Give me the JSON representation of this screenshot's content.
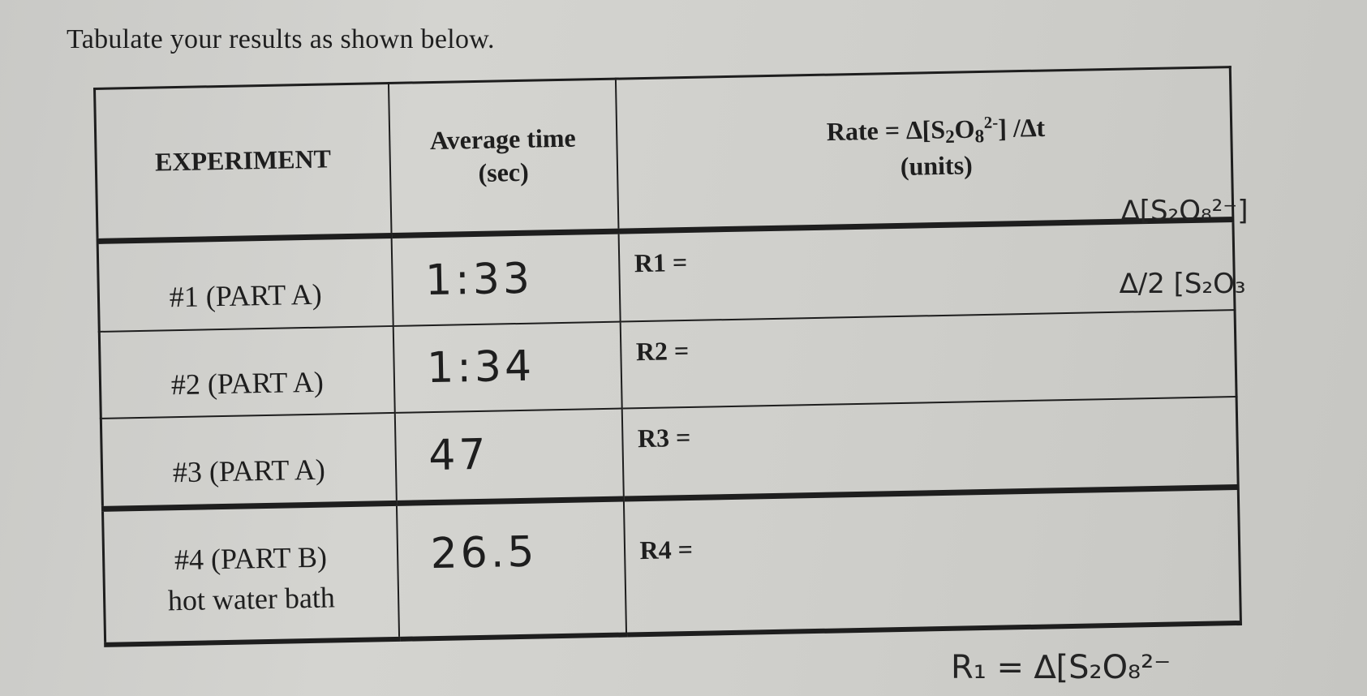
{
  "instruction": "Tabulate your results as shown below.",
  "table": {
    "headers": {
      "experiment": "EXPERIMENT",
      "time_line1": "Average time",
      "time_line2": "(sec)",
      "rate_prefix": "Rate = ∆[S",
      "rate_sub1": "2",
      "rate_mid": "O",
      "rate_sub2": "8",
      "rate_sup": "2-",
      "rate_suffix": "] /∆t",
      "rate_line2": "(units)"
    },
    "rows": [
      {
        "experiment": "#1 (PART A)",
        "time": "1:33",
        "rate": "R1 ="
      },
      {
        "experiment": "#2 (PART A)",
        "time": "1:34",
        "rate": "R2 ="
      },
      {
        "experiment": "#3 (PART A)",
        "time": "47",
        "rate": "R3 ="
      },
      {
        "experiment": "#4 (PART B)",
        "experiment_line2": "hot water bath",
        "time": "26.5",
        "rate": "R4 ="
      }
    ]
  },
  "margin_notes": {
    "note1": "∆[S₂O₈²⁻]",
    "note2": "∆/2 [S₂O₃",
    "note3": "R₁ = ∆[S₂O₈²⁻"
  }
}
